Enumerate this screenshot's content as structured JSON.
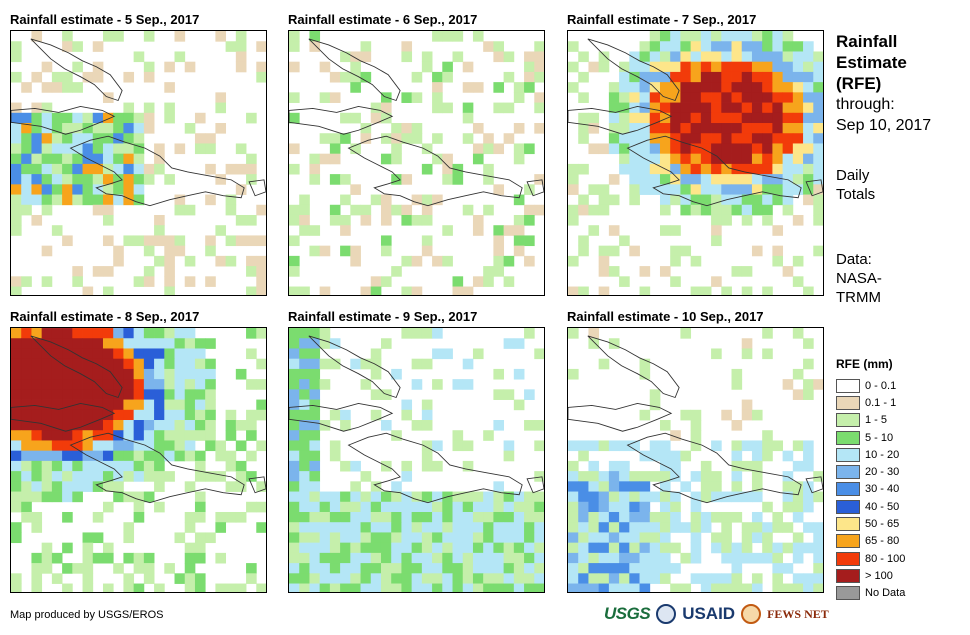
{
  "panels": [
    {
      "title": "Rainfall estimate - 5 Sep., 2017",
      "date": "5 Sep., 2017"
    },
    {
      "title": "Rainfall estimate - 6 Sep., 2017",
      "date": "6 Sep., 2017"
    },
    {
      "title": "Rainfall estimate - 7 Sep., 2017",
      "date": "7 Sep., 2017"
    },
    {
      "title": "Rainfall estimate - 8 Sep., 2017",
      "date": "8 Sep., 2017"
    },
    {
      "title": "Rainfall estimate - 9 Sep., 2017",
      "date": "9 Sep., 2017"
    },
    {
      "title": "Rainfall estimate - 10 Sep., 2017",
      "date": "10 Sep., 2017"
    }
  ],
  "side": {
    "title_line1": "Rainfall",
    "title_line2": "Estimate",
    "title_line3": "(RFE)",
    "through_label": "through:",
    "through_date": "Sep 10, 2017",
    "totals_line1": "Daily",
    "totals_line2": "Totals",
    "data_line1": "Data:",
    "data_line2": "NASA-",
    "data_line3": "TRMM"
  },
  "legend": {
    "title": "RFE (mm)",
    "items": [
      {
        "label": "0 - 0.1",
        "color": "#ffffff"
      },
      {
        "label": "0.1 - 1",
        "color": "#ead7b8"
      },
      {
        "label": "1 - 5",
        "color": "#c5efab"
      },
      {
        "label": "5 - 10",
        "color": "#7bdc6f"
      },
      {
        "label": "10 - 20",
        "color": "#b4e6f6"
      },
      {
        "label": "20 - 30",
        "color": "#7bb4ec"
      },
      {
        "label": "30 - 40",
        "color": "#4a8ee6"
      },
      {
        "label": "40 - 50",
        "color": "#2a5fd8"
      },
      {
        "label": "50 - 65",
        "color": "#fde68a"
      },
      {
        "label": "65 - 80",
        "color": "#f7a41c"
      },
      {
        "label": "80 - 100",
        "color": "#f23b0a"
      },
      {
        "label": "> 100",
        "color": "#a51d1d"
      },
      {
        "label": "No Data",
        "color": "#999999"
      }
    ]
  },
  "credit": "Map produced by USGS/EROS",
  "logos": {
    "usgs": "USGS",
    "usaid": "USAID",
    "fews": "FEWS NET"
  }
}
